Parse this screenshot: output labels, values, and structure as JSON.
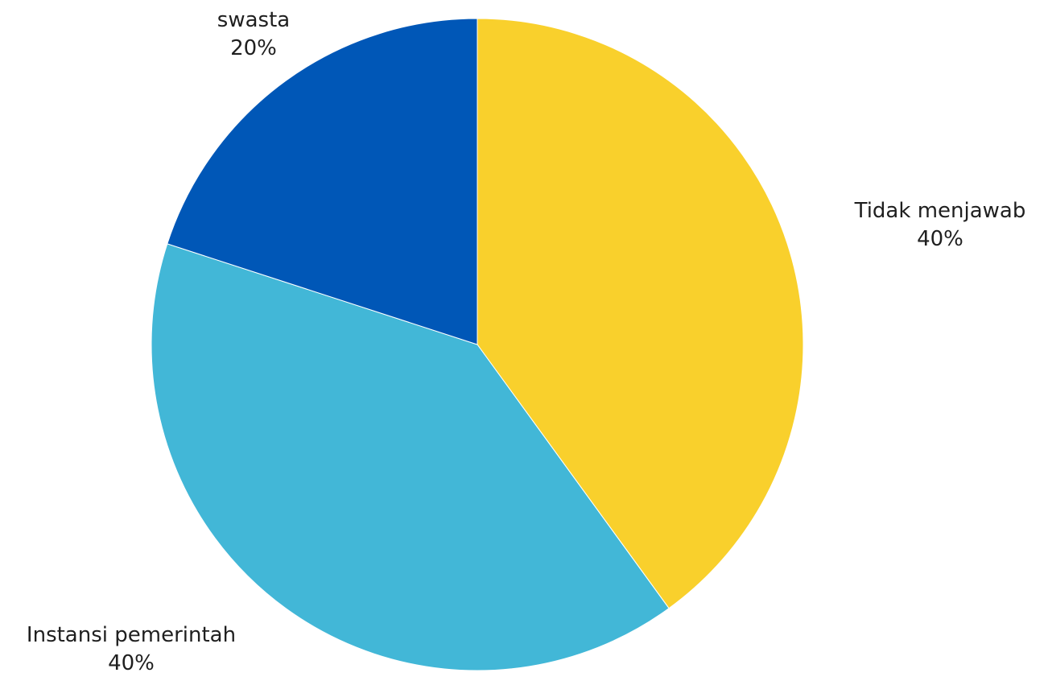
{
  "chart_data": {
    "type": "pie",
    "title": "",
    "slices": [
      {
        "label": "Tidak menjawab",
        "value": 40,
        "percent_label": "40%",
        "color": "#F9D02C"
      },
      {
        "label": "Instansi pemerintah",
        "value": 40,
        "percent_label": "40%",
        "color": "#42B7D7"
      },
      {
        "label": "swasta",
        "value": 20,
        "percent_label": "20%",
        "color": "#0057B7"
      }
    ],
    "start_angle_deg": 0,
    "direction": "clockwise",
    "legend": "none"
  }
}
